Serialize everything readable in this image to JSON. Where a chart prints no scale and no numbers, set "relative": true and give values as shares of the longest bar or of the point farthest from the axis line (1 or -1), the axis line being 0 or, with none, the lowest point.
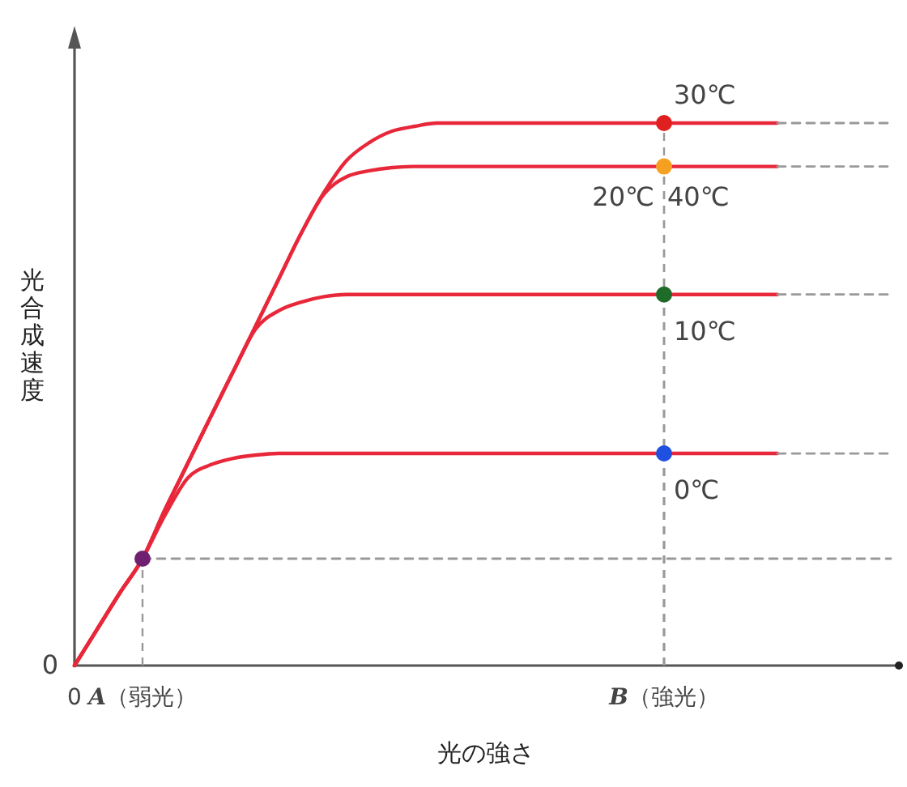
{
  "chart_data": {
    "type": "line",
    "relative": true,
    "xlabel": "光の強さ",
    "ylabel": "光合成速度",
    "categories": [
      "0",
      null,
      null,
      "*A*（弱光）",
      null,
      null,
      null,
      null,
      null,
      null,
      null,
      null,
      null,
      null,
      null,
      null,
      null,
      null,
      null,
      null,
      null,
      null,
      null,
      null,
      null,
      null,
      "*B*（強光）",
      null,
      null,
      null,
      null,
      null,
      null,
      null,
      null,
      null,
      null
    ],
    "series": [
      {
        "color": "#e8283a",
        "values": [
          0,
          0.067,
          0.134,
          0.197,
          0.288,
          0.373,
          0.458,
          0.542,
          0.627,
          0.712,
          0.797,
          0.872,
          0.931,
          0.964,
          0.985,
          0.994,
          1,
          1,
          1,
          1,
          1,
          1,
          1,
          1,
          1,
          1,
          1,
          1,
          1,
          1,
          1,
          1,
          null,
          null,
          null,
          null,
          null
        ]
      },
      {
        "color": "#e8283a",
        "values": [
          0,
          0.067,
          0.134,
          0.197,
          0.288,
          0.373,
          0.458,
          0.542,
          0.627,
          0.712,
          0.797,
          0.869,
          0.901,
          0.912,
          0.918,
          0.92,
          0.92,
          0.92,
          0.92,
          0.92,
          0.92,
          0.92,
          0.92,
          0.92,
          0.92,
          0.92,
          0.92,
          0.92,
          0.92,
          0.92,
          0.92,
          0.92,
          null,
          null,
          null,
          null,
          null
        ]
      },
      {
        "color": "#e8283a",
        "values": [
          0,
          0.067,
          0.134,
          0.197,
          0.288,
          0.373,
          0.458,
          0.542,
          0.621,
          0.654,
          0.67,
          0.68,
          0.684,
          0.684,
          0.684,
          0.684,
          0.684,
          0.684,
          0.684,
          0.684,
          0.684,
          0.684,
          0.684,
          0.684,
          0.684,
          0.684,
          0.684,
          0.684,
          0.684,
          0.684,
          0.684,
          0.684,
          null,
          null,
          null,
          null,
          null
        ]
      },
      {
        "color": "#e8283a",
        "values": [
          0,
          0.067,
          0.134,
          0.197,
          0.278,
          0.346,
          0.37,
          0.382,
          0.388,
          0.391,
          0.391,
          0.391,
          0.391,
          0.391,
          0.391,
          0.391,
          0.391,
          0.391,
          0.391,
          0.391,
          0.391,
          0.391,
          0.391,
          0.391,
          0.391,
          0.391,
          0.391,
          0.391,
          0.391,
          0.391,
          0.391,
          0.391,
          null,
          null,
          null,
          null,
          null
        ]
      },
      {
        "color": "#999999",
        "line_style": "dashed",
        "values": [
          null,
          null,
          null,
          null,
          null,
          null,
          null,
          null,
          null,
          null,
          null,
          null,
          null,
          null,
          null,
          null,
          null,
          null,
          null,
          null,
          null,
          null,
          null,
          null,
          null,
          null,
          null,
          null,
          null,
          null,
          null,
          1,
          1,
          1,
          1,
          1,
          1
        ]
      },
      {
        "color": "#999999",
        "line_style": "dashed",
        "values": [
          null,
          null,
          null,
          null,
          null,
          null,
          null,
          null,
          null,
          null,
          null,
          null,
          null,
          null,
          null,
          null,
          null,
          null,
          null,
          null,
          null,
          null,
          null,
          null,
          null,
          null,
          null,
          null,
          null,
          null,
          null,
          0.92,
          0.92,
          0.92,
          0.92,
          0.92,
          0.92
        ]
      },
      {
        "color": "#999999",
        "line_style": "dashed",
        "values": [
          null,
          null,
          null,
          null,
          null,
          null,
          null,
          null,
          null,
          null,
          null,
          null,
          null,
          null,
          null,
          null,
          null,
          null,
          null,
          null,
          null,
          null,
          null,
          null,
          null,
          null,
          null,
          null,
          null,
          null,
          null,
          0.684,
          0.684,
          0.684,
          0.684,
          0.684,
          0.684
        ]
      },
      {
        "color": "#999999",
        "line_style": "dashed",
        "values": [
          null,
          null,
          null,
          null,
          null,
          null,
          null,
          null,
          null,
          null,
          null,
          null,
          null,
          null,
          null,
          null,
          null,
          null,
          null,
          null,
          null,
          null,
          null,
          null,
          null,
          null,
          null,
          null,
          null,
          null,
          null,
          0.391,
          0.391,
          0.391,
          0.391,
          0.391,
          0.391
        ]
      },
      {
        "color": "#999999",
        "line_style": "dashed",
        "values": [
          null,
          null,
          null,
          0.197,
          0.197,
          0.197,
          0.197,
          0.197,
          0.197,
          0.197,
          0.197,
          0.197,
          0.197,
          0.197,
          0.197,
          0.197,
          0.197,
          0.197,
          0.197,
          0.197,
          0.197,
          0.197,
          0.197,
          0.197,
          0.197,
          0.197,
          0.197,
          0.197,
          0.197,
          0.197,
          0.197,
          0.197,
          0.197,
          0.197,
          0.197,
          0.197,
          0.197
        ]
      },
      {
        "type": "scatter",
        "marker": "circle",
        "color": "#e02020",
        "values": [
          null,
          null,
          null,
          null,
          null,
          null,
          null,
          null,
          null,
          null,
          null,
          null,
          null,
          null,
          null,
          null,
          null,
          null,
          null,
          null,
          null,
          null,
          null,
          null,
          null,
          null,
          1,
          null,
          null,
          null,
          null,
          null,
          null,
          null,
          null,
          null,
          null
        ]
      },
      {
        "type": "scatter",
        "marker": "circle",
        "color": "#f5a020",
        "values": [
          null,
          null,
          null,
          null,
          null,
          null,
          null,
          null,
          null,
          null,
          null,
          null,
          null,
          null,
          null,
          null,
          null,
          null,
          null,
          null,
          null,
          null,
          null,
          null,
          null,
          null,
          0.92,
          null,
          null,
          null,
          null,
          null,
          null,
          null,
          null,
          null,
          null
        ]
      },
      {
        "type": "scatter",
        "marker": "circle",
        "color": "#1f6b2a",
        "values": [
          null,
          null,
          null,
          null,
          null,
          null,
          null,
          null,
          null,
          null,
          null,
          null,
          null,
          null,
          null,
          null,
          null,
          null,
          null,
          null,
          null,
          null,
          null,
          null,
          null,
          null,
          0.684,
          null,
          null,
          null,
          null,
          null,
          null,
          null,
          null,
          null,
          null
        ]
      },
      {
        "type": "scatter",
        "marker": "circle",
        "color": "#2050e0",
        "values": [
          null,
          null,
          null,
          null,
          null,
          null,
          null,
          null,
          null,
          null,
          null,
          null,
          null,
          null,
          null,
          null,
          null,
          null,
          null,
          null,
          null,
          null,
          null,
          null,
          null,
          null,
          0.391,
          null,
          null,
          null,
          null,
          null,
          null,
          null,
          null,
          null,
          null
        ]
      },
      {
        "type": "scatter",
        "marker": "circle",
        "color": "#702070",
        "values": [
          null,
          null,
          null,
          0.197,
          null,
          null,
          null,
          null,
          null,
          null,
          null,
          null,
          null,
          null,
          null,
          null,
          null,
          null,
          null,
          null,
          null,
          null,
          null,
          null,
          null,
          null,
          null,
          null,
          null,
          null,
          null,
          null,
          null,
          null,
          null,
          null,
          null
        ]
      }
    ],
    "annotations": [
      "30℃",
      "20℃",
      "40℃",
      "10℃",
      "0℃",
      "0"
    ]
  }
}
